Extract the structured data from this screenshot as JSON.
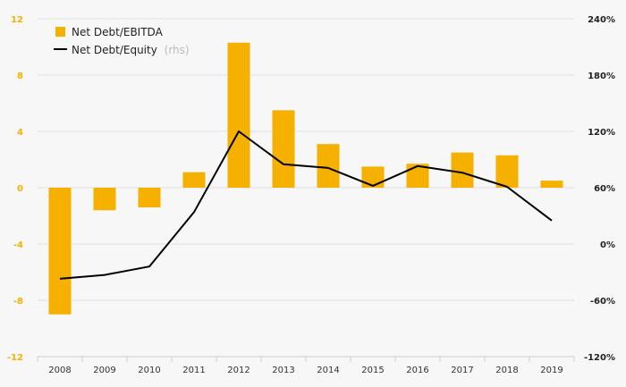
{
  "chart_data": {
    "type": "bar",
    "categories": [
      "2008",
      "2009",
      "2010",
      "2011",
      "2012",
      "2013",
      "2014",
      "2015",
      "2016",
      "2017",
      "2018",
      "2019"
    ],
    "series": [
      {
        "name": "Net Debt/EBITDA",
        "type": "bar",
        "axis": "left",
        "color": "#f5b000",
        "values": [
          -9.0,
          -1.6,
          -1.4,
          1.1,
          10.3,
          5.5,
          3.1,
          1.5,
          1.7,
          2.5,
          2.3,
          0.5
        ]
      },
      {
        "name": "Net Debt/Equity",
        "name_suffix": "(rhs)",
        "type": "line",
        "axis": "right",
        "color": "#000000",
        "values": [
          -37,
          -33,
          -24,
          34,
          120,
          85,
          81,
          62,
          83,
          76,
          61,
          25
        ]
      }
    ],
    "left_axis": {
      "ylim": [
        -12,
        12
      ],
      "ticks": [
        12,
        8,
        4,
        0,
        -4,
        -8,
        -12
      ],
      "tick_labels": [
        "12",
        "8",
        "4",
        "0",
        "-4",
        "-8",
        "-12"
      ],
      "color": "#f5b000"
    },
    "right_axis": {
      "ylim": [
        -120,
        240
      ],
      "ticks": [
        240,
        180,
        120,
        60,
        0,
        -60,
        -120
      ],
      "tick_labels": [
        "240%",
        "180%",
        "120%",
        "60%",
        "0%",
        "-60%",
        "-120%"
      ]
    },
    "grid": true,
    "legend_position": "top-left"
  }
}
